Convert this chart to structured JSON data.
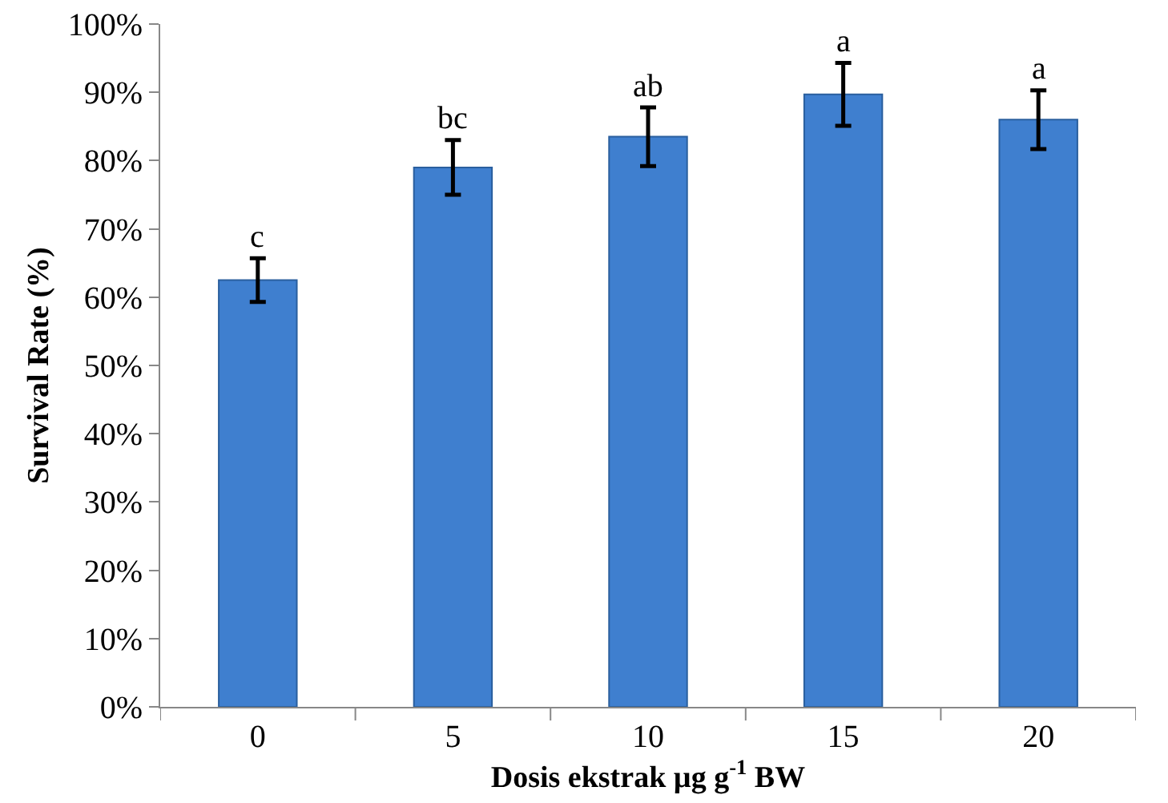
{
  "chart_data": {
    "type": "bar",
    "xlabel": "Dosis ekstrak µg g$^{-1}$ BW",
    "ylabel": "Survival Rate (%)",
    "categories": [
      "0",
      "5",
      "10",
      "15",
      "20"
    ],
    "values": [
      62.5,
      79,
      83.5,
      89.7,
      86
    ],
    "errors": [
      3.2,
      4,
      4.3,
      4.6,
      4.3
    ],
    "color": "#3f7fcf",
    "ylim": [
      0,
      100
    ],
    "yticks": [
      {
        "value": 0,
        "label": "0%"
      },
      {
        "value": 10,
        "label": "10%"
      },
      {
        "value": 20,
        "label": "20%"
      },
      {
        "value": 30,
        "label": "30%"
      },
      {
        "value": 40,
        "label": "40%"
      },
      {
        "value": 50,
        "label": "50%"
      },
      {
        "value": 60,
        "label": "60%"
      },
      {
        "value": 70,
        "label": "70%"
      },
      {
        "value": 80,
        "label": "80%"
      },
      {
        "value": 90,
        "label": "90%"
      },
      {
        "value": 100,
        "label": "100%"
      }
    ],
    "annotations": [
      {
        "text": "c",
        "x": "0",
        "y": 65.7
      },
      {
        "text": "bc",
        "x": "5",
        "y": 83
      },
      {
        "text": "ab",
        "x": "10",
        "y": 87.8
      },
      {
        "text": "a",
        "x": "15",
        "y": 94.3
      },
      {
        "text": "a",
        "x": "20",
        "y": 90.3
      }
    ],
    "grid": false,
    "legend": false
  }
}
